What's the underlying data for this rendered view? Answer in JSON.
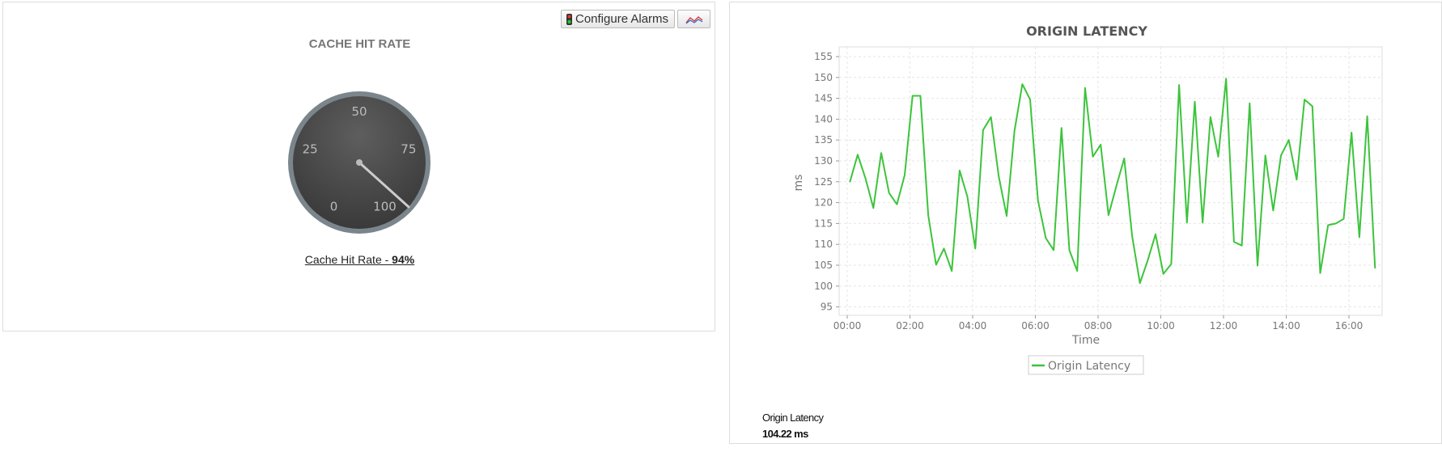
{
  "toolbar": {
    "configure_alarms_label": "Configure Alarms",
    "traffic-light-icon": "traffic-light-icon",
    "chart_icon": "line-chart-icon"
  },
  "gauge_panel": {
    "title": "CACHE HIT RATE",
    "gauge": {
      "min": 0,
      "max": 100,
      "value": 94,
      "tick_labels": [
        "0",
        "25",
        "50",
        "75",
        "100"
      ],
      "dial_color": "#444444",
      "rim_color": "#7b858c"
    },
    "caption_label": "Cache Hit Rate - ",
    "caption_value": "94%"
  },
  "latency_panel": {
    "summary_label": "Origin Latency",
    "summary_value": "104.22 ms"
  },
  "chart_data": {
    "type": "line",
    "title": "ORIGIN LATENCY",
    "xlabel": "Time",
    "ylabel": "ms",
    "ylim": [
      95,
      155
    ],
    "yticks": [
      "95",
      "100",
      "105",
      "110",
      "115",
      "120",
      "125",
      "130",
      "135",
      "140",
      "145",
      "150",
      "155"
    ],
    "xticks": [
      "00:00",
      "02:00",
      "04:00",
      "06:00",
      "08:00",
      "10:00",
      "12:00",
      "14:00",
      "16:00"
    ],
    "grid": true,
    "legend_position": "bottom",
    "series": [
      {
        "name": "Origin Latency",
        "color": "#3cc43c",
        "x": [
          "00:05",
          "00:20",
          "00:35",
          "00:50",
          "01:05",
          "01:20",
          "01:35",
          "01:50",
          "02:05",
          "02:20",
          "02:35",
          "02:50",
          "03:05",
          "03:20",
          "03:35",
          "03:50",
          "04:05",
          "04:20",
          "04:35",
          "04:50",
          "05:05",
          "05:20",
          "05:35",
          "05:50",
          "06:05",
          "06:20",
          "06:35",
          "06:50",
          "07:05",
          "07:20",
          "07:35",
          "07:50",
          "08:05",
          "08:20",
          "08:35",
          "08:50",
          "09:05",
          "09:20",
          "09:35",
          "09:50",
          "10:05",
          "10:20",
          "10:35",
          "10:50",
          "11:05",
          "11:20",
          "11:35",
          "11:50",
          "12:05",
          "12:20",
          "12:35",
          "12:50",
          "13:05",
          "13:20",
          "13:35",
          "13:50",
          "14:05",
          "14:20",
          "14:35",
          "14:50",
          "15:05",
          "15:20",
          "15:35",
          "15:50",
          "16:05",
          "16:20",
          "16:35",
          "16:50"
        ],
        "values": [
          124.9,
          131.5,
          125.8,
          118.7,
          131.9,
          122.3,
          119.6,
          126.6,
          145.6,
          145.6,
          117.0,
          105.1,
          109.0,
          103.6,
          127.7,
          121.4,
          109.0,
          137.4,
          140.5,
          126.2,
          116.8,
          137.2,
          148.4,
          144.7,
          120.5,
          111.5,
          108.6,
          137.9,
          108.6,
          103.6,
          147.5,
          131.0,
          133.9,
          117.0,
          124.0,
          130.6,
          112.1,
          100.7,
          106.2,
          112.4,
          102.9,
          105.3,
          148.2,
          115.2,
          144.2,
          115.2,
          140.5,
          131.0,
          149.7,
          110.6,
          109.7,
          143.8,
          104.9,
          131.3,
          118.1,
          131.3,
          135.0,
          125.5,
          144.7,
          143.1,
          103.1,
          114.6,
          115.0,
          116.1,
          136.8,
          111.7,
          140.7,
          104.22
        ]
      }
    ]
  }
}
